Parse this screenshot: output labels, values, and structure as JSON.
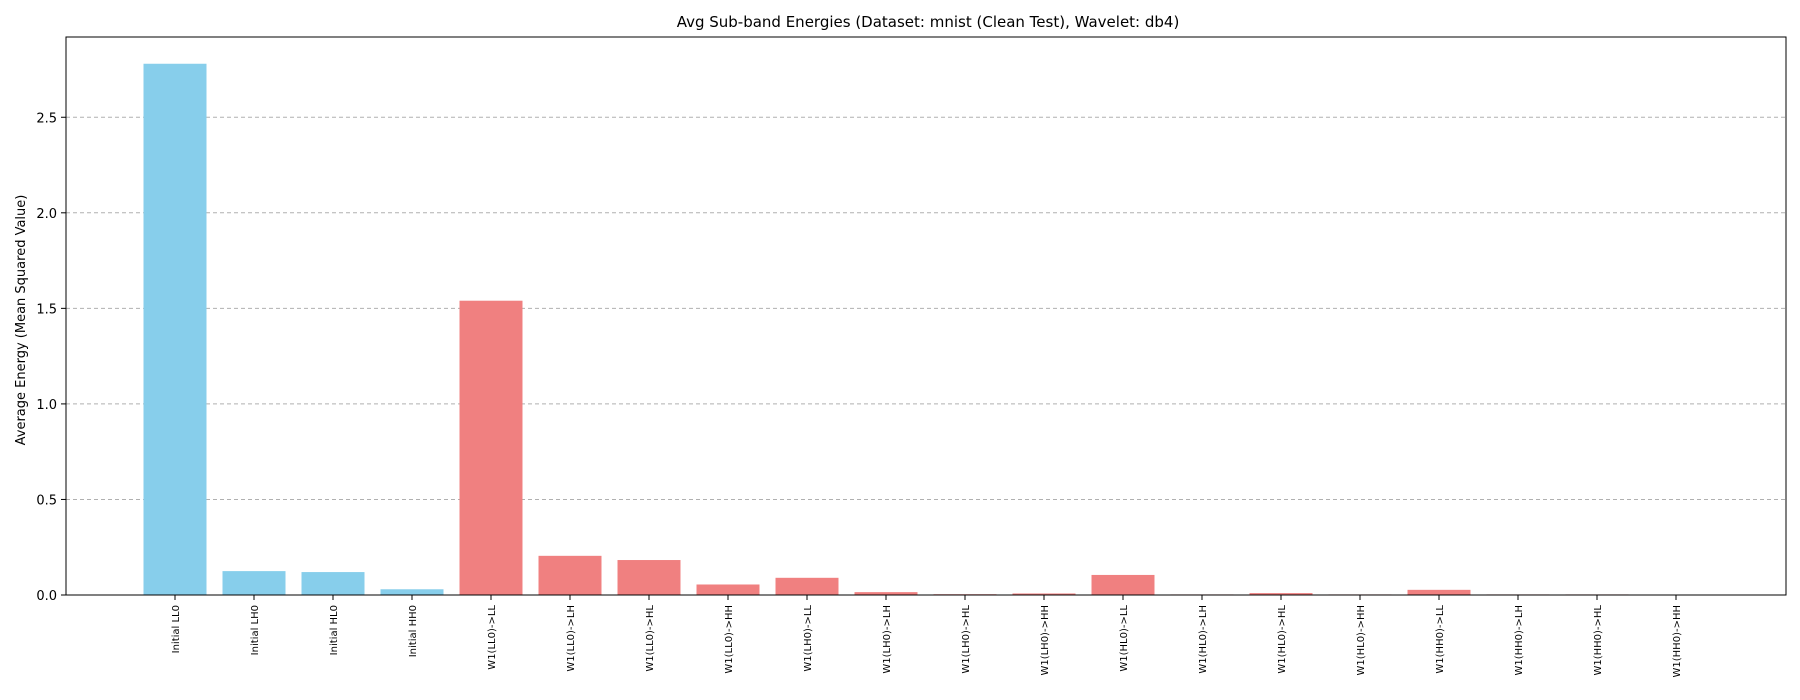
{
  "chart_data": {
    "type": "bar",
    "title": "Avg Sub-band Energies (Dataset: mnist (Clean Test), Wavelet: db4)",
    "xlabel": "",
    "ylabel": "Average Energy (Mean Squared Value)",
    "ylim": [
      0,
      2.92
    ],
    "yticks": [
      0.0,
      0.5,
      1.0,
      1.5,
      2.0,
      2.5
    ],
    "ytick_labels": [
      "0.0",
      "0.5",
      "1.0",
      "1.5",
      "2.0",
      "2.5"
    ],
    "grid": "y-dashed",
    "categories": [
      "Initial LL0",
      "Initial LH0",
      "Initial HL0",
      "Initial HH0",
      "W1(LL0)->LL",
      "W1(LL0)->LH",
      "W1(LL0)->HL",
      "W1(LL0)->HH",
      "W1(LH0)->LL",
      "W1(LH0)->LH",
      "W1(LH0)->HL",
      "W1(LH0)->HH",
      "W1(HL0)->LL",
      "W1(HL0)->LH",
      "W1(HL0)->HL",
      "W1(HL0)->HH",
      "W1(HH0)->LL",
      "W1(HH0)->LH",
      "W1(HH0)->HL",
      "W1(HH0)->HH"
    ],
    "values": [
      2.78,
      0.125,
      0.12,
      0.03,
      1.54,
      0.205,
      0.183,
      0.055,
      0.09,
      0.015,
      0.004,
      0.008,
      0.105,
      0.003,
      0.01,
      0.003,
      0.027,
      0.003,
      0.003,
      0.002
    ],
    "colors": [
      "#87ceeb",
      "#87ceeb",
      "#87ceeb",
      "#87ceeb",
      "#f08080",
      "#f08080",
      "#f08080",
      "#f08080",
      "#f08080",
      "#f08080",
      "#f08080",
      "#f08080",
      "#f08080",
      "#f08080",
      "#f08080",
      "#f08080",
      "#f08080",
      "#f08080",
      "#f08080",
      "#f08080"
    ]
  }
}
